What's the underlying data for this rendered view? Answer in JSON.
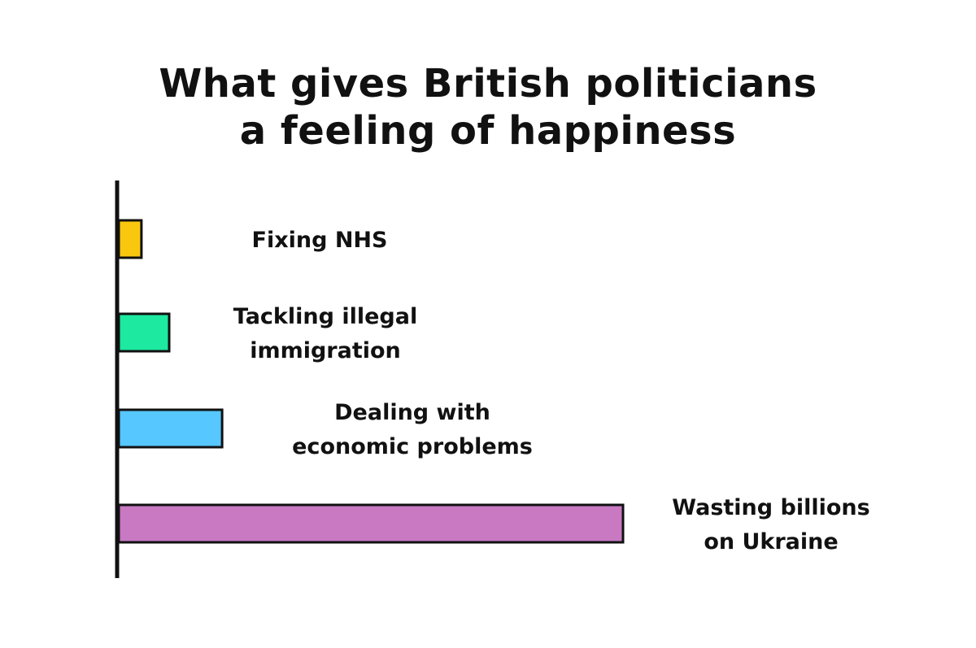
{
  "chart_data": {
    "type": "bar",
    "orientation": "horizontal",
    "title": "What gives British politicians\na feeling of happiness",
    "categories": [
      "Fixing NHS",
      "Tackling illegal\nimmigration",
      "Dealing with\neconomic problems",
      "Wasting billions\non Ukraine"
    ],
    "values": [
      4.5,
      10,
      20.5,
      100
    ],
    "colors": [
      "#f9c80e",
      "#1de9a0",
      "#57c7ff",
      "#c879c2"
    ],
    "xlabel": "",
    "ylabel": "",
    "xlim": [
      0,
      100
    ],
    "grid": false,
    "legend": "none"
  }
}
